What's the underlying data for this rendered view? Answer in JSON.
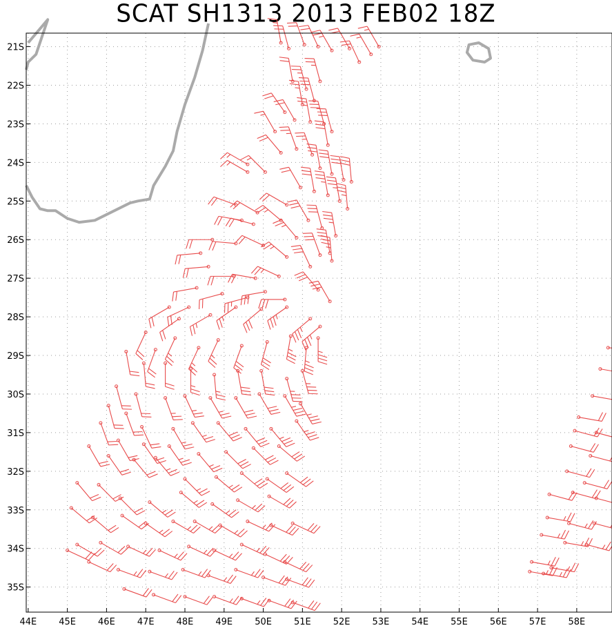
{
  "title": "SCAT SH1313 2013 FEB02 18Z",
  "map": {
    "lon_labels": [
      "44E",
      "45E",
      "46E",
      "47E",
      "48E",
      "49E",
      "50E",
      "51E",
      "52E",
      "53E",
      "54E",
      "55E",
      "56E",
      "57E",
      "58E"
    ],
    "lat_labels": [
      "21S",
      "22S",
      "23S",
      "24S",
      "25S",
      "26S",
      "27S",
      "28S",
      "29S",
      "30S",
      "31S",
      "32S",
      "33S",
      "34S",
      "35S"
    ],
    "lon_range": [
      43.95,
      58.9
    ],
    "lat_range": [
      -20.65,
      -35.65
    ],
    "grid": "dotted",
    "coast_color": "#aaaaaa",
    "barb_color": "#e84a4a",
    "coastline": [
      [
        44.0,
        -20.9
      ],
      [
        44.5,
        -20.3
      ],
      [
        44.2,
        -21.2
      ],
      [
        44.0,
        -21.4
      ],
      [
        43.95,
        -21.6
      ]
    ],
    "madagascar_coast": [
      [
        48.6,
        -20.4
      ],
      [
        48.45,
        -21.1
      ],
      [
        48.25,
        -21.8
      ],
      [
        48.0,
        -22.5
      ],
      [
        47.8,
        -23.2
      ],
      [
        47.7,
        -23.7
      ],
      [
        47.5,
        -24.1
      ],
      [
        47.2,
        -24.6
      ],
      [
        47.1,
        -24.95
      ],
      [
        46.8,
        -25.0
      ],
      [
        46.6,
        -25.05
      ],
      [
        46.4,
        -25.15
      ],
      [
        46.0,
        -25.35
      ],
      [
        45.7,
        -25.5
      ],
      [
        45.3,
        -25.55
      ],
      [
        45.0,
        -25.45
      ],
      [
        44.7,
        -25.25
      ],
      [
        44.5,
        -25.25
      ],
      [
        44.3,
        -25.2
      ],
      [
        44.1,
        -24.9
      ],
      [
        43.95,
        -24.6
      ]
    ],
    "reunion_island": [
      [
        55.25,
        -20.95
      ],
      [
        55.5,
        -20.9
      ],
      [
        55.75,
        -21.05
      ],
      [
        55.8,
        -21.3
      ],
      [
        55.65,
        -21.4
      ],
      [
        55.35,
        -21.35
      ],
      [
        55.2,
        -21.15
      ],
      [
        55.25,
        -20.95
      ]
    ],
    "wind_barbs": [
      [
        50.45,
        -20.9,
        350,
        15
      ],
      [
        50.65,
        -21.05,
        345,
        20
      ],
      [
        51.05,
        -20.95,
        340,
        20
      ],
      [
        51.4,
        -21.0,
        335,
        20
      ],
      [
        51.75,
        -21.1,
        330,
        25
      ],
      [
        52.2,
        -21.05,
        330,
        20
      ],
      [
        52.45,
        -21.4,
        335,
        20
      ],
      [
        52.75,
        -21.2,
        330,
        15
      ],
      [
        52.95,
        -21.0,
        330,
        15
      ],
      [
        50.75,
        -21.9,
        350,
        20
      ],
      [
        51.1,
        -22.1,
        345,
        25
      ],
      [
        51.45,
        -21.9,
        345,
        25
      ],
      [
        51.0,
        -22.5,
        350,
        25
      ],
      [
        51.3,
        -22.4,
        345,
        30
      ],
      [
        50.55,
        -22.7,
        325,
        20
      ],
      [
        50.8,
        -22.9,
        330,
        20
      ],
      [
        51.2,
        -22.95,
        350,
        25
      ],
      [
        51.55,
        -23.0,
        345,
        30
      ],
      [
        51.75,
        -23.2,
        345,
        30
      ],
      [
        50.3,
        -23.2,
        330,
        15
      ],
      [
        50.45,
        -23.75,
        320,
        20
      ],
      [
        50.85,
        -23.65,
        340,
        25
      ],
      [
        51.25,
        -23.8,
        340,
        25
      ],
      [
        51.65,
        -23.55,
        350,
        30
      ],
      [
        51.45,
        -24.15,
        350,
        30
      ],
      [
        51.75,
        -24.3,
        350,
        30
      ],
      [
        52.05,
        -24.45,
        350,
        30
      ],
      [
        52.25,
        -24.5,
        355,
        30
      ],
      [
        51.3,
        -24.75,
        350,
        30
      ],
      [
        51.65,
        -24.85,
        350,
        35
      ],
      [
        51.95,
        -25.0,
        350,
        35
      ],
      [
        52.15,
        -25.2,
        355,
        35
      ],
      [
        49.6,
        -24.05,
        300,
        15
      ],
      [
        49.6,
        -24.25,
        300,
        15
      ],
      [
        50.05,
        -24.25,
        315,
        15
      ],
      [
        50.95,
        -24.65,
        330,
        20
      ],
      [
        50.6,
        -25.1,
        300,
        20
      ],
      [
        49.3,
        -25.1,
        290,
        20
      ],
      [
        49.85,
        -25.3,
        300,
        20
      ],
      [
        50.45,
        -25.5,
        310,
        25
      ],
      [
        51.15,
        -25.5,
        330,
        30
      ],
      [
        51.5,
        -25.7,
        345,
        30
      ],
      [
        51.85,
        -25.9,
        350,
        35
      ],
      [
        51.7,
        -26.35,
        350,
        35
      ],
      [
        51.75,
        -26.55,
        355,
        35
      ],
      [
        49.45,
        -25.5,
        280,
        20
      ],
      [
        49.75,
        -25.6,
        285,
        20
      ],
      [
        50.85,
        -25.95,
        320,
        25
      ],
      [
        51.45,
        -26.4,
        340,
        30
      ],
      [
        48.7,
        -26.0,
        270,
        20
      ],
      [
        49.3,
        -26.1,
        275,
        20
      ],
      [
        50.0,
        -26.15,
        295,
        20
      ],
      [
        50.6,
        -26.45,
        310,
        25
      ],
      [
        51.2,
        -26.7,
        335,
        30
      ],
      [
        48.4,
        -26.35,
        265,
        20
      ],
      [
        48.6,
        -26.7,
        265,
        20
      ],
      [
        49.25,
        -26.95,
        270,
        20
      ],
      [
        49.8,
        -27.0,
        280,
        20
      ],
      [
        50.4,
        -26.95,
        295,
        25
      ],
      [
        51.4,
        -27.3,
        320,
        30
      ],
      [
        51.7,
        -27.6,
        330,
        30
      ],
      [
        48.3,
        -27.25,
        260,
        20
      ],
      [
        48.95,
        -27.4,
        255,
        20
      ],
      [
        49.6,
        -27.5,
        255,
        25
      ],
      [
        50.05,
        -27.35,
        260,
        30
      ],
      [
        50.55,
        -27.55,
        270,
        30
      ],
      [
        47.6,
        -27.75,
        240,
        20
      ],
      [
        47.85,
        -28.05,
        235,
        20
      ],
      [
        48.1,
        -27.75,
        245,
        20
      ],
      [
        48.65,
        -27.95,
        240,
        25
      ],
      [
        49.3,
        -27.75,
        235,
        25
      ],
      [
        49.95,
        -27.8,
        230,
        30
      ],
      [
        50.6,
        -27.75,
        235,
        35
      ],
      [
        51.2,
        -28.05,
        230,
        35
      ],
      [
        51.45,
        -28.25,
        230,
        35
      ],
      [
        47.0,
        -28.4,
        205,
        20
      ],
      [
        47.25,
        -28.85,
        200,
        20
      ],
      [
        47.75,
        -28.55,
        205,
        25
      ],
      [
        48.35,
        -28.8,
        205,
        25
      ],
      [
        48.85,
        -28.6,
        205,
        25
      ],
      [
        49.45,
        -28.75,
        200,
        30
      ],
      [
        50.1,
        -28.65,
        195,
        30
      ],
      [
        50.7,
        -28.5,
        190,
        35
      ],
      [
        51.1,
        -28.8,
        185,
        35
      ],
      [
        51.4,
        -28.55,
        180,
        35
      ],
      [
        46.5,
        -28.9,
        170,
        20
      ],
      [
        46.95,
        -29.2,
        175,
        20
      ],
      [
        47.5,
        -29.2,
        180,
        20
      ],
      [
        48.15,
        -29.35,
        180,
        25
      ],
      [
        48.75,
        -29.5,
        175,
        25
      ],
      [
        49.35,
        -29.4,
        170,
        30
      ],
      [
        49.95,
        -29.4,
        170,
        30
      ],
      [
        50.6,
        -29.6,
        165,
        35
      ],
      [
        51.0,
        -29.4,
        165,
        35
      ],
      [
        46.25,
        -29.8,
        165,
        20
      ],
      [
        46.75,
        -30.0,
        165,
        20
      ],
      [
        47.5,
        -30.1,
        160,
        25
      ],
      [
        48.0,
        -30.05,
        155,
        25
      ],
      [
        48.65,
        -30.1,
        150,
        25
      ],
      [
        49.3,
        -30.1,
        150,
        30
      ],
      [
        49.9,
        -30.0,
        150,
        30
      ],
      [
        50.55,
        -30.05,
        150,
        35
      ],
      [
        50.95,
        -30.25,
        150,
        35
      ],
      [
        46.05,
        -30.3,
        165,
        20
      ],
      [
        46.5,
        -30.5,
        160,
        20
      ],
      [
        46.9,
        -30.85,
        155,
        20
      ],
      [
        47.7,
        -30.9,
        150,
        25
      ],
      [
        48.2,
        -30.75,
        145,
        25
      ],
      [
        48.85,
        -30.75,
        140,
        30
      ],
      [
        49.55,
        -30.9,
        140,
        30
      ],
      [
        50.2,
        -30.9,
        140,
        35
      ],
      [
        50.85,
        -30.7,
        145,
        35
      ],
      [
        45.85,
        -30.75,
        160,
        20
      ],
      [
        46.3,
        -31.2,
        150,
        20
      ],
      [
        46.95,
        -31.3,
        145,
        20
      ],
      [
        47.6,
        -31.35,
        145,
        25
      ],
      [
        48.35,
        -31.55,
        140,
        25
      ],
      [
        49.05,
        -31.5,
        135,
        30
      ],
      [
        49.75,
        -31.4,
        135,
        30
      ],
      [
        50.4,
        -31.35,
        130,
        30
      ],
      [
        45.55,
        -31.35,
        150,
        20
      ],
      [
        46.05,
        -31.6,
        145,
        20
      ],
      [
        46.7,
        -31.7,
        140,
        20
      ],
      [
        47.25,
        -31.65,
        140,
        25
      ],
      [
        48.0,
        -32.2,
        135,
        25
      ],
      [
        48.8,
        -32.15,
        130,
        25
      ],
      [
        49.45,
        -32.05,
        130,
        30
      ],
      [
        50.1,
        -32.2,
        125,
        30
      ],
      [
        50.6,
        -32.05,
        125,
        30
      ],
      [
        45.25,
        -32.3,
        140,
        20
      ],
      [
        45.8,
        -32.35,
        135,
        20
      ],
      [
        46.35,
        -32.7,
        135,
        20
      ],
      [
        47.1,
        -32.8,
        130,
        25
      ],
      [
        47.9,
        -32.55,
        130,
        25
      ],
      [
        48.7,
        -32.85,
        125,
        25
      ],
      [
        49.35,
        -32.75,
        120,
        25
      ],
      [
        50.15,
        -32.65,
        120,
        30
      ],
      [
        45.1,
        -32.95,
        130,
        20
      ],
      [
        45.65,
        -33.2,
        130,
        20
      ],
      [
        46.4,
        -33.15,
        125,
        20
      ],
      [
        47.0,
        -33.35,
        125,
        25
      ],
      [
        47.7,
        -33.3,
        120,
        25
      ],
      [
        48.25,
        -33.3,
        120,
        25
      ],
      [
        48.9,
        -33.4,
        120,
        25
      ],
      [
        49.6,
        -33.3,
        115,
        25
      ],
      [
        50.2,
        -33.4,
        115,
        30
      ],
      [
        50.75,
        -33.35,
        115,
        30
      ],
      [
        45.25,
        -33.9,
        120,
        20
      ],
      [
        45.85,
        -33.85,
        120,
        20
      ],
      [
        46.55,
        -33.95,
        115,
        25
      ],
      [
        47.35,
        -34.05,
        115,
        25
      ],
      [
        48.1,
        -33.95,
        115,
        25
      ],
      [
        48.75,
        -34.05,
        115,
        25
      ],
      [
        49.45,
        -33.9,
        115,
        25
      ],
      [
        50.05,
        -34.15,
        115,
        30
      ],
      [
        50.55,
        -34.35,
        115,
        30
      ],
      [
        45.0,
        -34.05,
        115,
        20
      ],
      [
        45.55,
        -34.35,
        115,
        20
      ],
      [
        46.3,
        -34.55,
        110,
        25
      ],
      [
        47.1,
        -34.6,
        110,
        25
      ],
      [
        47.95,
        -34.55,
        110,
        25
      ],
      [
        48.6,
        -34.7,
        110,
        25
      ],
      [
        49.3,
        -34.55,
        110,
        25
      ],
      [
        50.0,
        -34.75,
        110,
        30
      ],
      [
        50.6,
        -34.8,
        110,
        30
      ],
      [
        46.45,
        -35.05,
        110,
        20
      ],
      [
        47.2,
        -35.2,
        110,
        20
      ],
      [
        48.0,
        -35.25,
        110,
        20
      ],
      [
        48.75,
        -35.25,
        110,
        25
      ],
      [
        49.45,
        -35.3,
        110,
        25
      ],
      [
        50.15,
        -35.35,
        110,
        30
      ],
      [
        50.75,
        -35.4,
        110,
        30
      ],
      [
        48.0,
        -35.75,
        110,
        20
      ],
      [
        49.0,
        -35.8,
        110,
        20
      ],
      [
        49.9,
        -35.8,
        110,
        25
      ],
      [
        50.6,
        -35.75,
        110,
        25
      ],
      [
        58.8,
        -28.8,
        95,
        15
      ],
      [
        58.6,
        -29.35,
        100,
        15
      ],
      [
        58.4,
        -30.05,
        100,
        15
      ],
      [
        58.05,
        -30.6,
        100,
        20
      ],
      [
        57.95,
        -30.95,
        105,
        20
      ],
      [
        58.5,
        -31.0,
        105,
        20
      ],
      [
        57.85,
        -31.35,
        105,
        20
      ],
      [
        58.35,
        -31.6,
        105,
        20
      ],
      [
        57.75,
        -32.0,
        105,
        20
      ],
      [
        58.2,
        -32.3,
        105,
        20
      ],
      [
        57.3,
        -32.6,
        105,
        20
      ],
      [
        57.9,
        -32.55,
        105,
        20
      ],
      [
        58.5,
        -32.7,
        105,
        20
      ],
      [
        57.25,
        -33.2,
        100,
        25
      ],
      [
        57.8,
        -33.35,
        105,
        25
      ],
      [
        58.45,
        -33.35,
        105,
        25
      ],
      [
        57.1,
        -33.65,
        100,
        25
      ],
      [
        57.7,
        -33.85,
        100,
        25
      ],
      [
        58.25,
        -33.9,
        105,
        25
      ],
      [
        56.85,
        -34.35,
        100,
        25
      ],
      [
        57.35,
        -34.5,
        100,
        25
      ],
      [
        56.8,
        -34.6,
        100,
        25
      ],
      [
        57.15,
        -34.65,
        100,
        25
      ]
    ]
  }
}
